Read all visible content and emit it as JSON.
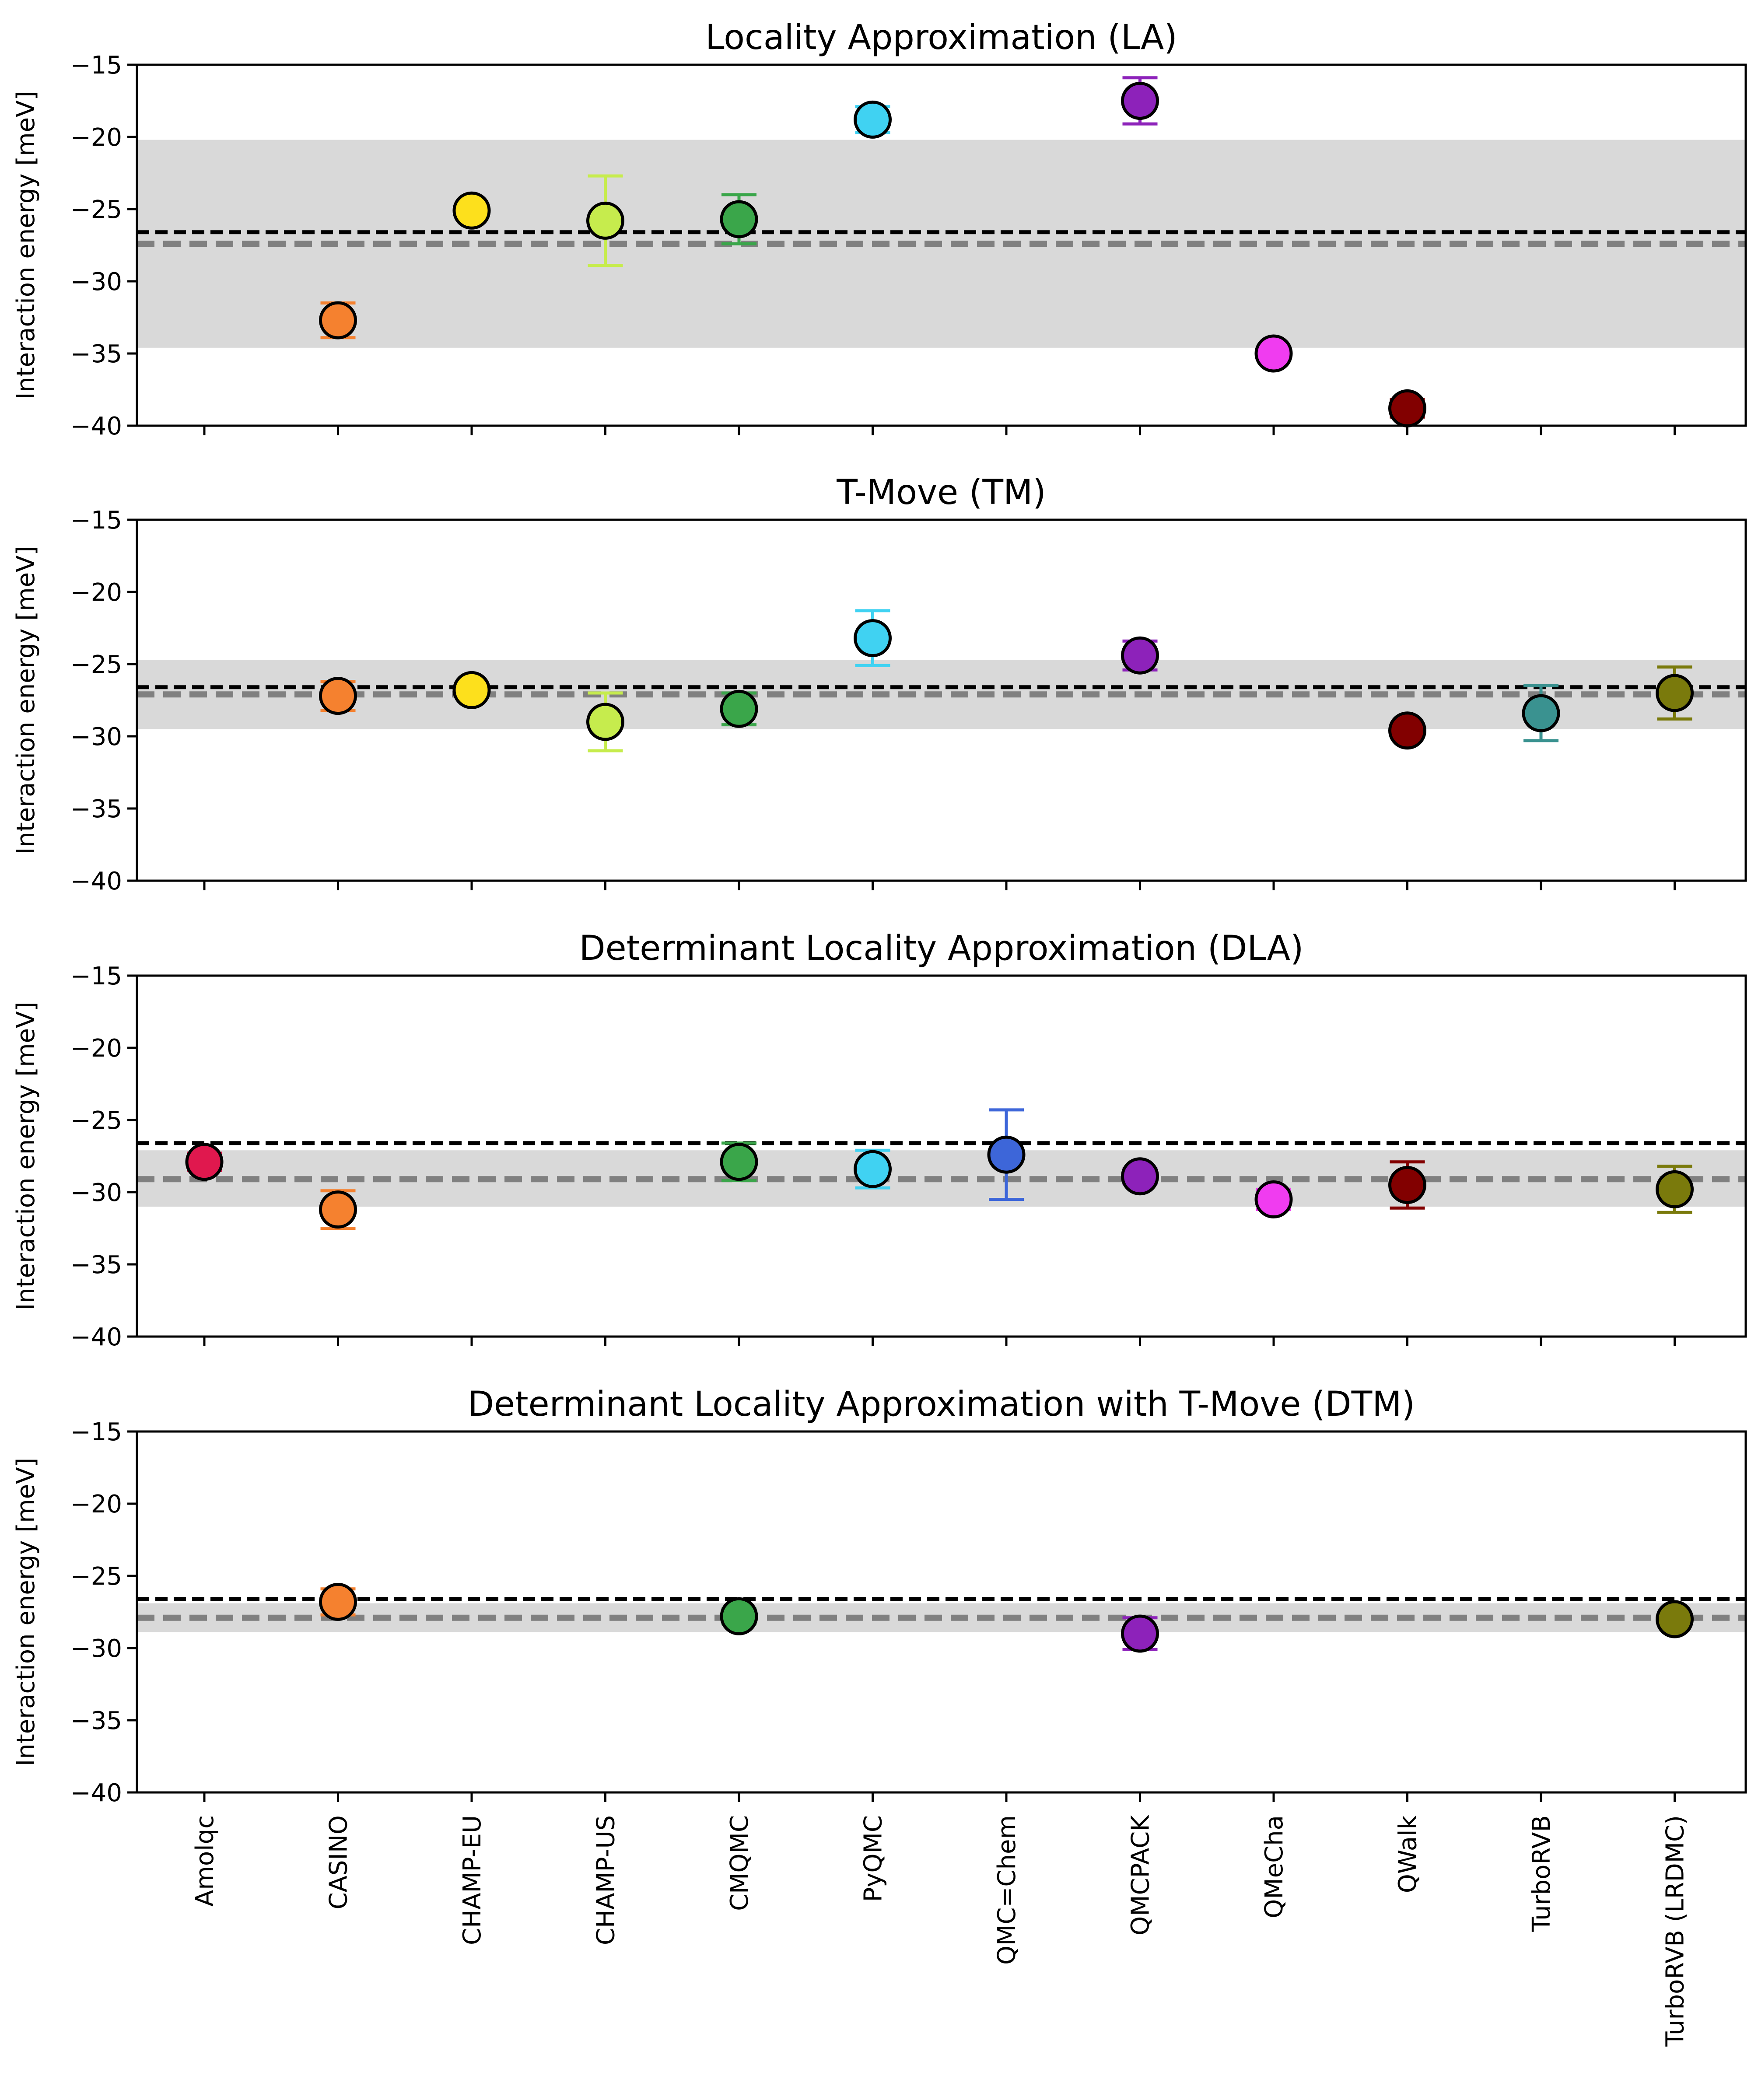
{
  "colors": {
    "band": "#d9d9d9",
    "reference_line": "#000000",
    "mean_line": "#808080",
    "Amolqc": "#e0184e",
    "CASINO": "#f5812f",
    "CHAMP-EU": "#fde01c",
    "CHAMP-US": "#c6ec4d",
    "CMQMC": "#3aa64a",
    "PyQMC": "#40d2f2",
    "QMC=Chem": "#3d66d9",
    "QMCPACK": "#8d22ba",
    "QMeCha": "#f03cf0",
    "QWalk": "#820000",
    "TurboRVB": "#3a9290",
    "TurboRVB (LRDMC)": "#7a7a0c"
  },
  "chart_data": [
    {
      "type": "scatter",
      "title": "Locality Approximation (LA)",
      "ylabel": "Interaction energy [meV]",
      "ylim": [
        -40,
        -15
      ],
      "yticks": [
        -15,
        -20,
        -25,
        -30,
        -35,
        -40
      ],
      "categories": [
        "Amolqc",
        "CASINO",
        "CHAMP-EU",
        "CHAMP-US",
        "CMQMC",
        "PyQMC",
        "QMC=Chem",
        "QMCPACK",
        "QMeCha",
        "QWalk",
        "TurboRVB",
        "TurboRVB (LRDMC)"
      ],
      "reference_line": -26.6,
      "mean_line": -27.4,
      "band": [
        -34.6,
        -20.2
      ],
      "points": [
        {
          "category": "CASINO",
          "value": -32.7,
          "error": 1.2
        },
        {
          "category": "CHAMP-EU",
          "value": -25.1,
          "error": 0.2
        },
        {
          "category": "CHAMP-US",
          "value": -25.8,
          "error": 3.1
        },
        {
          "category": "CMQMC",
          "value": -25.7,
          "error": 1.7
        },
        {
          "category": "PyQMC",
          "value": -18.8,
          "error": 0.9
        },
        {
          "category": "QMCPACK",
          "value": -17.5,
          "error": 1.6
        },
        {
          "category": "QMeCha",
          "value": -35.0,
          "error": 0.3
        },
        {
          "category": "QWalk",
          "value": -38.8,
          "error": 0.6
        }
      ]
    },
    {
      "type": "scatter",
      "title": "T-Move (TM)",
      "ylabel": "Interaction energy [meV]",
      "ylim": [
        -40,
        -15
      ],
      "yticks": [
        -15,
        -20,
        -25,
        -30,
        -35,
        -40
      ],
      "categories": [
        "Amolqc",
        "CASINO",
        "CHAMP-EU",
        "CHAMP-US",
        "CMQMC",
        "PyQMC",
        "QMC=Chem",
        "QMCPACK",
        "QMeCha",
        "QWalk",
        "TurboRVB",
        "TurboRVB (LRDMC)"
      ],
      "reference_line": -26.6,
      "mean_line": -27.1,
      "band": [
        -29.5,
        -24.7
      ],
      "points": [
        {
          "category": "CASINO",
          "value": -27.2,
          "error": 1.0
        },
        {
          "category": "CHAMP-EU",
          "value": -26.8,
          "error": 0.3
        },
        {
          "category": "CHAMP-US",
          "value": -29.0,
          "error": 2.0
        },
        {
          "category": "CMQMC",
          "value": -28.1,
          "error": 1.1
        },
        {
          "category": "PyQMC",
          "value": -23.2,
          "error": 1.9
        },
        {
          "category": "QMCPACK",
          "value": -24.4,
          "error": 1.0
        },
        {
          "category": "QWalk",
          "value": -29.6,
          "error": 0.4
        },
        {
          "category": "TurboRVB",
          "value": -28.4,
          "error": 1.9
        },
        {
          "category": "TurboRVB (LRDMC)",
          "value": -27.0,
          "error": 1.8
        }
      ]
    },
    {
      "type": "scatter",
      "title": "Determinant Locality Approximation (DLA)",
      "ylabel": "Interaction energy [meV]",
      "ylim": [
        -40,
        -15
      ],
      "yticks": [
        -15,
        -20,
        -25,
        -30,
        -35,
        -40
      ],
      "categories": [
        "Amolqc",
        "CASINO",
        "CHAMP-EU",
        "CHAMP-US",
        "CMQMC",
        "PyQMC",
        "QMC=Chem",
        "QMCPACK",
        "QMeCha",
        "QWalk",
        "TurboRVB",
        "TurboRVB (LRDMC)"
      ],
      "reference_line": -26.6,
      "mean_line": -29.1,
      "band": [
        -31.0,
        -27.1
      ],
      "points": [
        {
          "category": "Amolqc",
          "value": -27.9,
          "error": 0.6
        },
        {
          "category": "CASINO",
          "value": -31.2,
          "error": 1.3
        },
        {
          "category": "CMQMC",
          "value": -27.9,
          "error": 1.3
        },
        {
          "category": "PyQMC",
          "value": -28.4,
          "error": 1.3
        },
        {
          "category": "QMC=Chem",
          "value": -27.4,
          "error": 3.1
        },
        {
          "category": "QMCPACK",
          "value": -28.9,
          "error": 0.5
        },
        {
          "category": "QMeCha",
          "value": -30.5,
          "error": 0.7
        },
        {
          "category": "QWalk",
          "value": -29.5,
          "error": 1.6
        },
        {
          "category": "TurboRVB (LRDMC)",
          "value": -29.8,
          "error": 1.6
        }
      ]
    },
    {
      "type": "scatter",
      "title": "Determinant Locality Approximation with T-Move (DTM)",
      "ylabel": "Interaction energy [meV]",
      "ylim": [
        -40,
        -15
      ],
      "yticks": [
        -15,
        -20,
        -25,
        -30,
        -35,
        -40
      ],
      "categories": [
        "Amolqc",
        "CASINO",
        "CHAMP-EU",
        "CHAMP-US",
        "CMQMC",
        "PyQMC",
        "QMC=Chem",
        "QMCPACK",
        "QMeCha",
        "QWalk",
        "TurboRVB",
        "TurboRVB (LRDMC)"
      ],
      "reference_line": -26.6,
      "mean_line": -27.9,
      "band": [
        -28.9,
        -26.9
      ],
      "points": [
        {
          "category": "CASINO",
          "value": -26.8,
          "error": 0.9
        },
        {
          "category": "CMQMC",
          "value": -27.8,
          "error": 0.5
        },
        {
          "category": "QMCPACK",
          "value": -29.0,
          "error": 1.1
        },
        {
          "category": "TurboRVB (LRDMC)",
          "value": -28.0,
          "error": 0.3
        }
      ]
    }
  ]
}
